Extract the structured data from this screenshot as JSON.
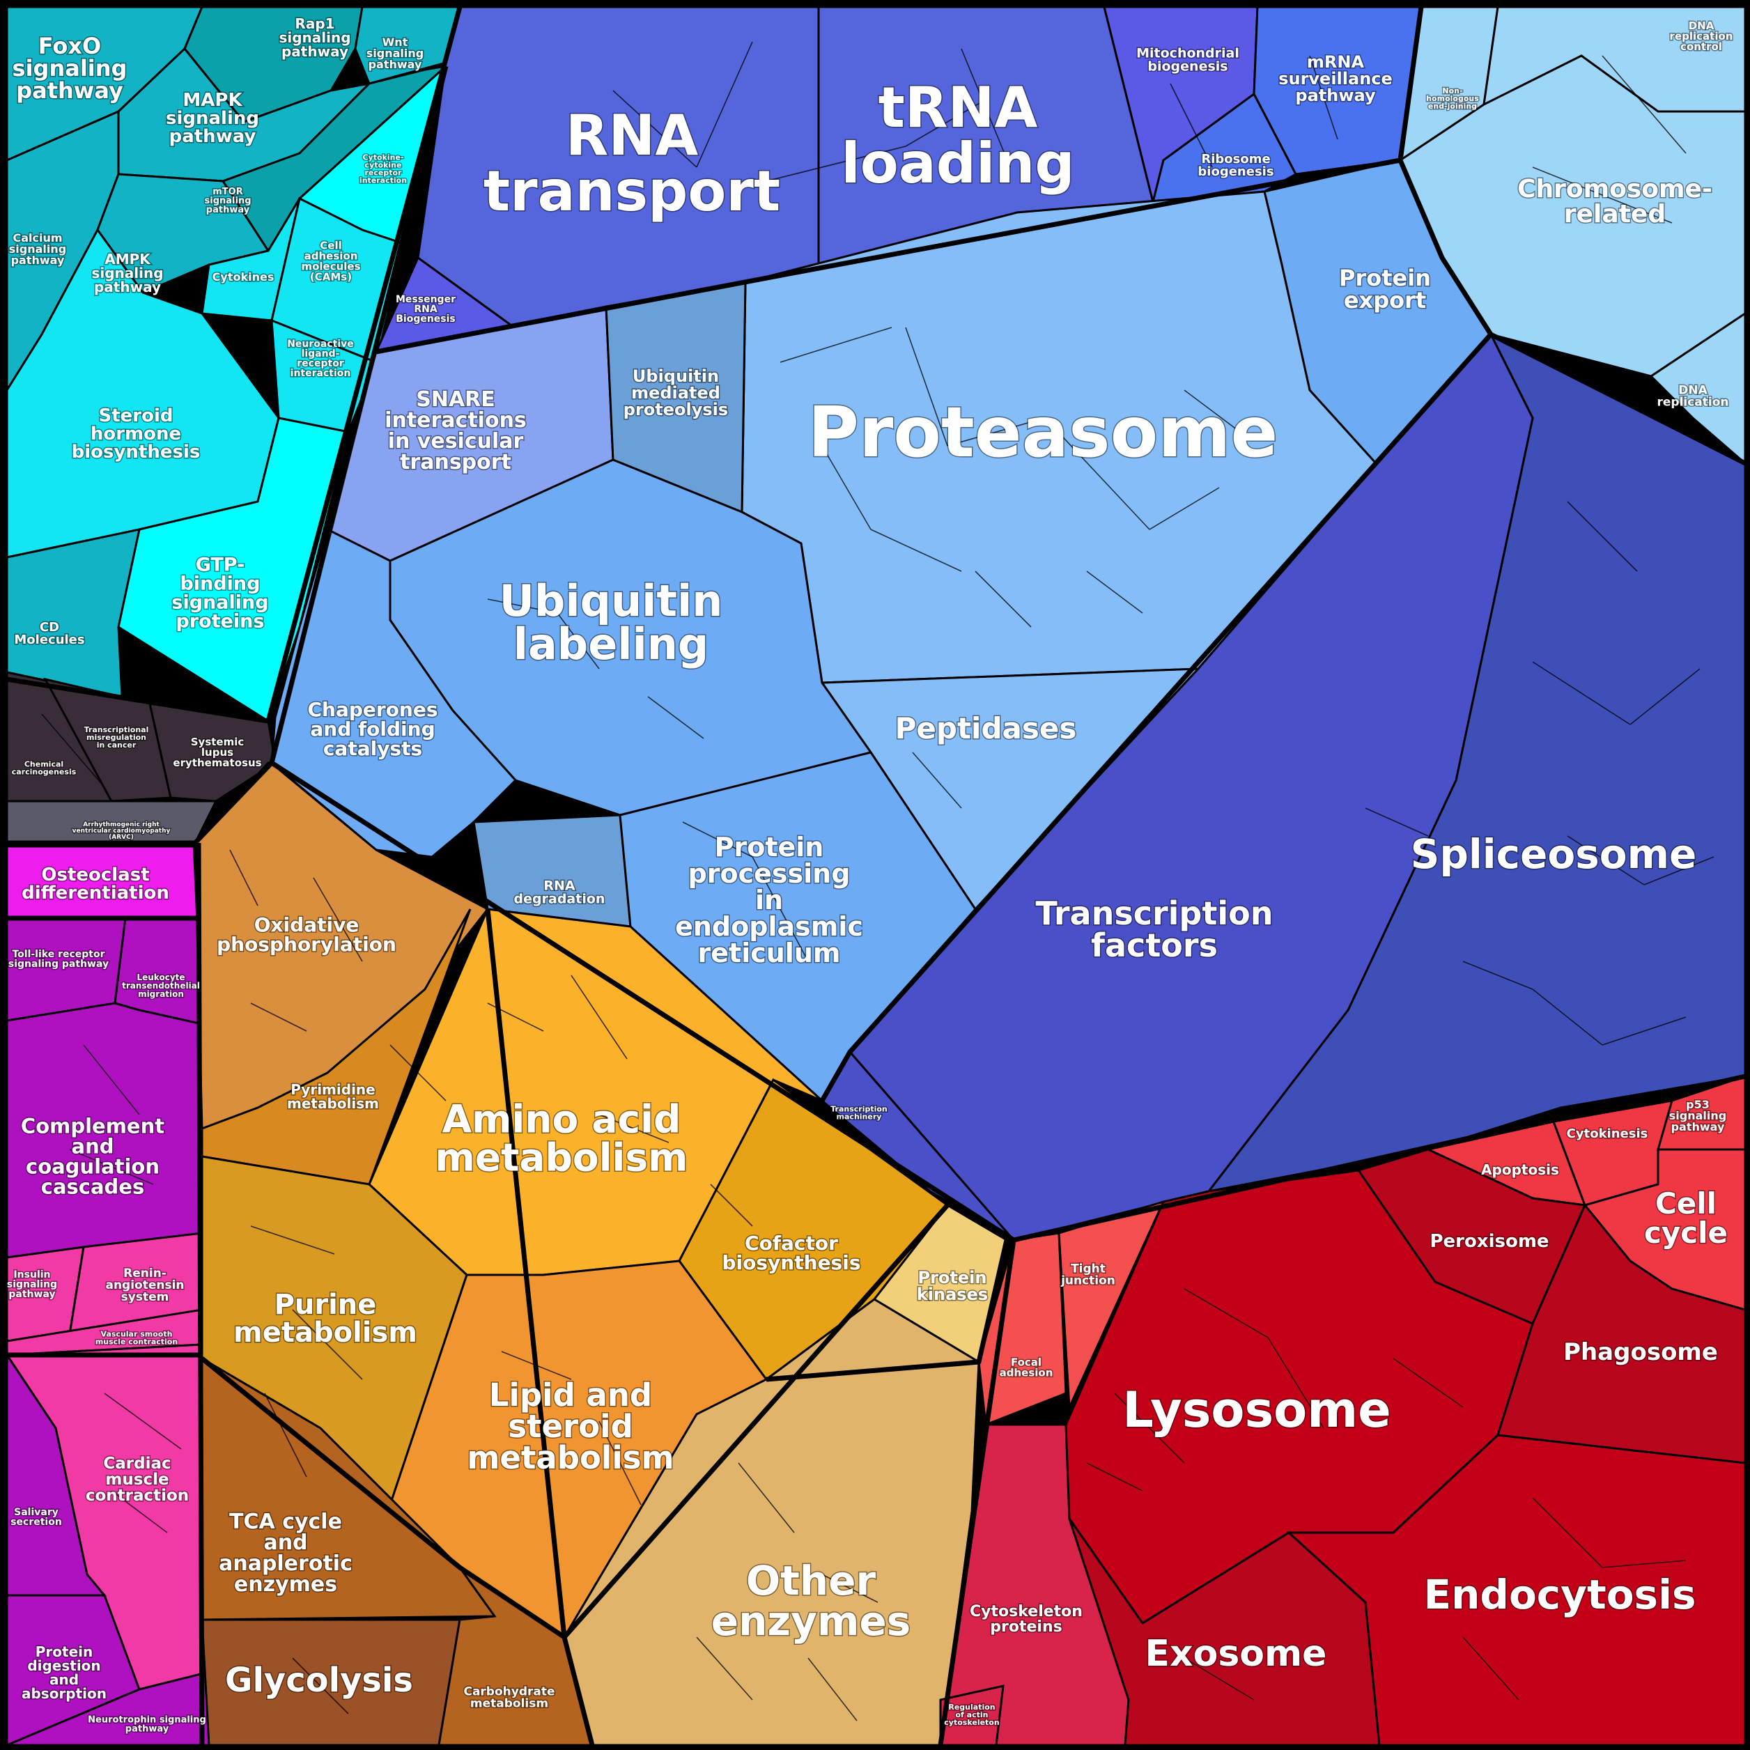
{
  "labels": {
    "foxo": [
      "FoxO",
      "signaling",
      "pathway"
    ],
    "rap1": [
      "Rap1",
      "signaling",
      "pathway"
    ],
    "wnt": [
      "Wnt",
      "signaling",
      "pathway"
    ],
    "mapk": [
      "MAPK",
      "signaling",
      "pathway"
    ],
    "mtor": [
      "mTOR",
      "signaling",
      "pathway"
    ],
    "cytokine_receptor": [
      "Cytokine-",
      "cytokine",
      "receptor",
      "interaction"
    ],
    "calcium": [
      "Calcium",
      "signaling",
      "pathway"
    ],
    "ampk": [
      "AMPK",
      "signaling",
      "pathway"
    ],
    "cytokines": [
      "Cytokines"
    ],
    "cams": [
      "Cell",
      "adhesion",
      "molecules",
      "(CAMs)"
    ],
    "neuroactive": [
      "Neuroactive",
      "ligand-",
      "receptor",
      "interaction"
    ],
    "steroid_hormone": [
      "Steroid",
      "hormone",
      "biosynthesis"
    ],
    "gtp": [
      "GTP-",
      "binding",
      "signaling",
      "proteins"
    ],
    "cd": [
      "CD",
      "Molecules"
    ],
    "chem_carc": [
      "Chemical",
      "carcinogenesis"
    ],
    "transc_misreg": [
      "Transcriptional",
      "misregulation",
      "in cancer"
    ],
    "sle": [
      "Systemic",
      "lupus",
      "erythematosus"
    ],
    "arvc": [
      "Arrhythmogenic right",
      "ventricular cardiomyopathy",
      "(ARVC)"
    ],
    "rna_transport": [
      "RNA",
      "transport"
    ],
    "trna": [
      "tRNA",
      "loading"
    ],
    "mito_biogen": [
      "Mitochondrial",
      "biogenesis"
    ],
    "mrna_surv": [
      "mRNA",
      "surveillance",
      "pathway"
    ],
    "ribo_biogen": [
      "Ribosome",
      "biogenesis"
    ],
    "messenger_rna": [
      "Messenger",
      "RNA",
      "Biogenesis"
    ],
    "nhej": [
      "Non-",
      "homologous",
      "end-joining"
    ],
    "dna_repl_ctrl": [
      "DNA",
      "replication",
      "control"
    ],
    "chromosome": [
      "Chromosome-",
      "related"
    ],
    "dna_repl": [
      "DNA",
      "replication"
    ],
    "protein_export": [
      "Protein",
      "export"
    ],
    "proteasome": [
      "Proteasome"
    ],
    "snare": [
      "SNARE",
      "interactions",
      "in vesicular",
      "transport"
    ],
    "ubiq_prot": [
      "Ubiquitin",
      "mediated",
      "proteolysis"
    ],
    "ubiq_label": [
      "Ubiquitin",
      "labeling"
    ],
    "chaperones": [
      "Chaperones",
      "and folding",
      "catalysts"
    ],
    "peptidases": [
      "Peptidases"
    ],
    "protein_er": [
      "Protein",
      "processing",
      "in",
      "endoplasmic",
      "reticulum"
    ],
    "rna_degr": [
      "RNA",
      "degradation"
    ],
    "spliceosome": [
      "Spliceosome"
    ],
    "tf": [
      "Transcription",
      "factors"
    ],
    "transc_mach": [
      "Transcription",
      "machinery"
    ],
    "osteoclast": [
      "Osteoclast",
      "differentiation"
    ],
    "tlr": [
      "Toll-like receptor",
      "signaling pathway"
    ],
    "leukocyte": [
      "Leukocyte",
      "transendothelial",
      "migration"
    ],
    "complement": [
      "Complement",
      "and",
      "coagulation",
      "cascades"
    ],
    "insulin": [
      "Insulin",
      "signaling",
      "pathway"
    ],
    "renin": [
      "Renin-",
      "angiotensin",
      "system"
    ],
    "vsmc": [
      "Vascular smooth",
      "muscle contraction"
    ],
    "cardiac": [
      "Cardiac",
      "muscle",
      "contraction"
    ],
    "salivary": [
      "Salivary",
      "secretion"
    ],
    "protein_dig": [
      "Protein",
      "digestion",
      "and",
      "absorption"
    ],
    "neurotrophin": [
      "Neurotrophin signaling",
      "pathway"
    ],
    "oxphos": [
      "Oxidative",
      "phosphorylation"
    ],
    "pyrimidine": [
      "Pyrimidine",
      "metabolism"
    ],
    "amino": [
      "Amino acid",
      "metabolism"
    ],
    "cofactor": [
      "Cofactor",
      "biosynthesis"
    ],
    "purine": [
      "Purine",
      "metabolism"
    ],
    "lipid": [
      "Lipid and",
      "steroid",
      "metabolism"
    ],
    "tca": [
      "TCA cycle",
      "and",
      "anaplerotic",
      "enzymes"
    ],
    "glycolysis": [
      "Glycolysis"
    ],
    "carbohydrate": [
      "Carbohydrate",
      "metabolism"
    ],
    "protein_kin": [
      "Protein",
      "kinases"
    ],
    "other_enz": [
      "Other",
      "enzymes"
    ],
    "focal": [
      "Focal",
      "adhesion"
    ],
    "tight": [
      "Tight",
      "junction"
    ],
    "cytoskel": [
      "Cytoskeleton",
      "proteins"
    ],
    "actin_reg": [
      "Regulation",
      "of actin",
      "cytoskeleton"
    ],
    "lysosome": [
      "Lysosome"
    ],
    "exosome": [
      "Exosome"
    ],
    "endocytosis": [
      "Endocytosis"
    ],
    "apoptosis": [
      "Apoptosis"
    ],
    "cytokinesis": [
      "Cytokinesis"
    ],
    "p53": [
      "p53",
      "signaling",
      "pathway"
    ],
    "cell_cycle": [
      "Cell",
      "cycle"
    ],
    "peroxisome": [
      "Peroxisome"
    ],
    "phagosome": [
      "Phagosome"
    ]
  },
  "colors": {
    "teal": "#12b3c4",
    "teal_dark": "#0aa1aa",
    "cyan": "#12e6f2",
    "cyan_bright": "#00ffff",
    "dark_gray": "#3a2d3a",
    "slate": "#5a5a6a",
    "blue_rna": "#5566dd",
    "blue_mito": "#5a5ae6",
    "blue_mrna": "#4a72ee",
    "light_blue": "#9ed6f7",
    "sky": "#6eabf5",
    "sky_light": "#84bdf8",
    "periwinkle": "#88a3f2",
    "steel": "#6a9fd8",
    "indigo": "#4a50c8",
    "indigo_dark": "#3f4fb8",
    "magenta": "#ee1dee",
    "purple": "#b011c0",
    "pink": "#f23aa6",
    "orange_brown": "#d98f3e",
    "orange": "#d88a20",
    "amber": "#fbb22a",
    "amber_dark": "#e8a215",
    "mustard": "#d99a22",
    "orange_lipid": "#f09530",
    "brown": "#b56420",
    "brown_dark": "#9a5226",
    "tan": "#e0b46a",
    "tan_light": "#f2d07a",
    "red_light": "#f45050",
    "crimson": "#d8244a",
    "red": "#c30018",
    "red_mid": "#b8061c",
    "red_bright": "#f03845"
  }
}
